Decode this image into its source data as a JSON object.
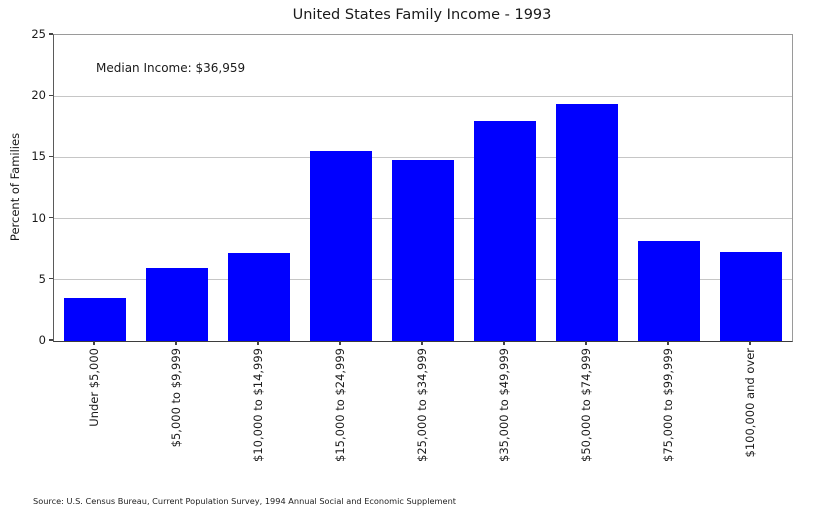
{
  "chart_data": {
    "type": "bar",
    "title": "United States Family Income - 1993",
    "ylabel": "Percent of Families",
    "xlabel": "",
    "annotation": "Median Income: $36,959",
    "source_note": "Source: U.S. Census Bureau, Current Population Survey, 1994 Annual Social and Economic Supplement",
    "categories": [
      "Under $5,000",
      "$5,000 to $9,999",
      "$10,000 to $14,999",
      "$15,000 to $24,999",
      "$25,000 to $34,999",
      "$35,000 to $49,999",
      "$50,000 to $74,999",
      "$75,000 to $99,999",
      "$100,000 and over"
    ],
    "values": [
      3.5,
      6.0,
      7.2,
      15.5,
      14.8,
      18.0,
      19.4,
      8.2,
      7.3
    ],
    "ylim": [
      0,
      25
    ],
    "yticks": [
      0,
      5,
      10,
      15,
      20,
      25
    ],
    "bar_color": "#0000ff",
    "grid": "horizontal",
    "legend": "none"
  }
}
